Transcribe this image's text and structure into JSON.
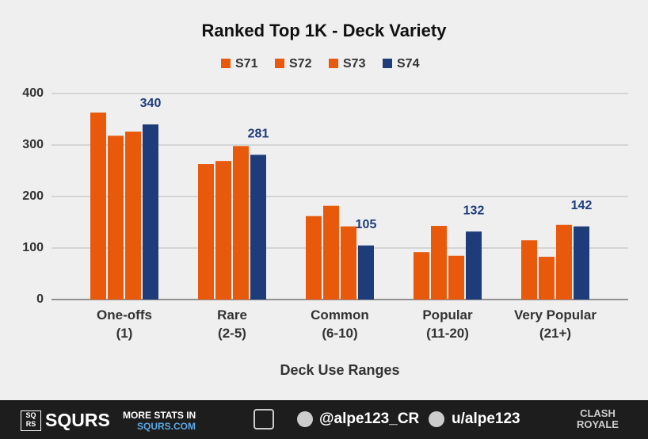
{
  "chart_data": {
    "type": "bar",
    "title": "Ranked Top 1K - Deck Variety",
    "x_label": "Deck Use Ranges",
    "categories": [
      "One-offs\n(1)",
      "Rare\n(2-5)",
      "Common\n(6-10)",
      "Popular\n(11-20)",
      "Very Popular\n(21+)"
    ],
    "series": [
      {
        "name": "S71",
        "color": "#e8590c",
        "values": [
          363,
          263,
          162,
          92,
          115
        ]
      },
      {
        "name": "S72",
        "color": "#e8590c",
        "values": [
          318,
          269,
          182,
          143,
          83
        ]
      },
      {
        "name": "S73",
        "color": "#e8590c",
        "values": [
          326,
          298,
          142,
          85,
          145
        ]
      },
      {
        "name": "S74",
        "color": "#1f3c7a",
        "values": [
          340,
          281,
          105,
          132,
          142
        ],
        "show_labels": true
      }
    ],
    "ylim": [
      0,
      400
    ],
    "yticks": [
      0,
      100,
      200,
      300,
      400
    ],
    "grid": true,
    "legend": "top"
  },
  "footer": {
    "logo_top": "SQ",
    "logo_bottom": "RS",
    "brand": "SQURS",
    "promo": "MORE STATS IN",
    "site": "SQURS.COM",
    "twitter": "@alpe123_CR",
    "reddit": "u/alpe123",
    "game_top": "CLASH",
    "game_bottom": "ROYALE"
  }
}
